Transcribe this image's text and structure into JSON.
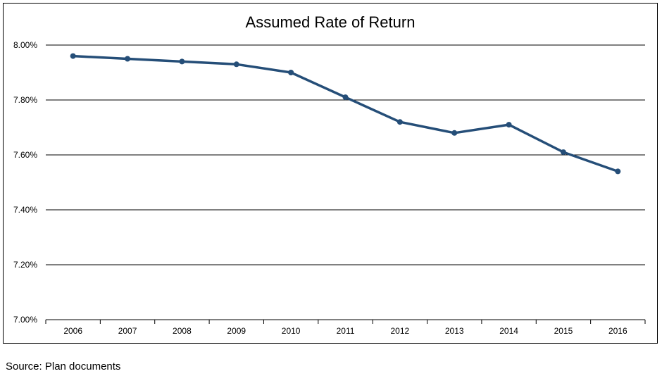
{
  "colors": {
    "line": "#254E78",
    "grid": "#000000",
    "text": "#000000"
  },
  "chart_data": {
    "type": "line",
    "title": "Assumed Rate of Return",
    "xlabel": "",
    "ylabel": "",
    "categories": [
      "2006",
      "2007",
      "2008",
      "2009",
      "2010",
      "2011",
      "2012",
      "2013",
      "2014",
      "2015",
      "2016"
    ],
    "series": [
      {
        "values": [
          7.96,
          7.95,
          7.94,
          7.93,
          7.9,
          7.81,
          7.72,
          7.68,
          7.71,
          7.61,
          7.54
        ]
      }
    ],
    "ylim": [
      7.0,
      8.0
    ],
    "yticks": [
      7.0,
      7.2,
      7.4,
      7.6,
      7.8,
      8.0
    ],
    "ytick_labels": [
      "7.00%",
      "7.20%",
      "7.40%",
      "7.60%",
      "7.80%",
      "8.00%"
    ],
    "grid": "horizontal",
    "legend": "none"
  },
  "source_note": "Source: Plan documents"
}
